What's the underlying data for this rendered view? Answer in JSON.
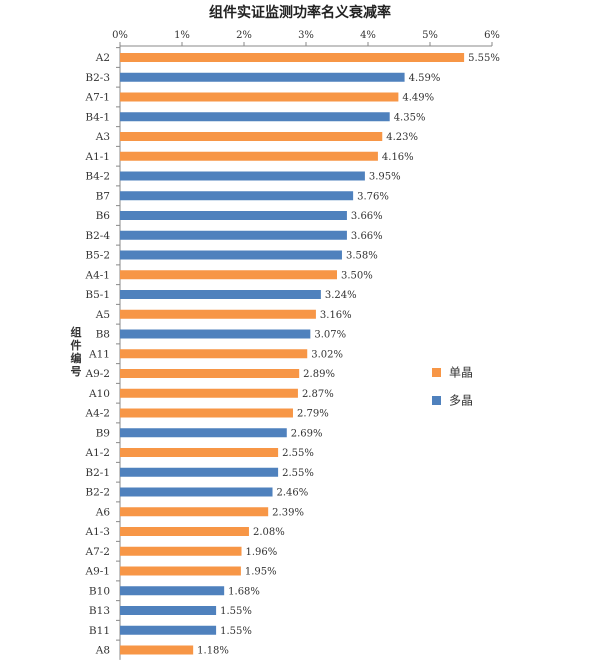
{
  "chart_data": {
    "type": "bar",
    "orientation": "horizontal",
    "title": "组件实证监测功率名义衰减率",
    "ylabel": "组件编号",
    "xlabel": "",
    "xlim": [
      0,
      6
    ],
    "x_ticks": [
      "0%",
      "1%",
      "2%",
      "3%",
      "4%",
      "5%",
      "6%"
    ],
    "x_axis_position": "top",
    "grid": false,
    "legend_position": "right",
    "series": [
      {
        "name": "单晶",
        "color": "#F79646"
      },
      {
        "name": "多晶",
        "color": "#4F81BD"
      }
    ],
    "bars": [
      {
        "category": "A2",
        "value": 5.55,
        "label": "5.55%",
        "series": 0
      },
      {
        "category": "B2-3",
        "value": 4.59,
        "label": "4.59%",
        "series": 1
      },
      {
        "category": "A7-1",
        "value": 4.49,
        "label": "4.49%",
        "series": 0
      },
      {
        "category": "B4-1",
        "value": 4.35,
        "label": "4.35%",
        "series": 1
      },
      {
        "category": "A3",
        "value": 4.23,
        "label": "4.23%",
        "series": 0
      },
      {
        "category": "A1-1",
        "value": 4.16,
        "label": "4.16%",
        "series": 0
      },
      {
        "category": "B4-2",
        "value": 3.95,
        "label": "3.95%",
        "series": 1
      },
      {
        "category": "B7",
        "value": 3.76,
        "label": "3.76%",
        "series": 1
      },
      {
        "category": "B6",
        "value": 3.66,
        "label": "3.66%",
        "series": 1
      },
      {
        "category": "B2-4",
        "value": 3.66,
        "label": "3.66%",
        "series": 1
      },
      {
        "category": "B5-2",
        "value": 3.58,
        "label": "3.58%",
        "series": 1
      },
      {
        "category": "A4-1",
        "value": 3.5,
        "label": "3.50%",
        "series": 0
      },
      {
        "category": "B5-1",
        "value": 3.24,
        "label": "3.24%",
        "series": 1
      },
      {
        "category": "A5",
        "value": 3.16,
        "label": "3.16%",
        "series": 0
      },
      {
        "category": "B8",
        "value": 3.07,
        "label": "3.07%",
        "series": 1
      },
      {
        "category": "A11",
        "value": 3.02,
        "label": "3.02%",
        "series": 0
      },
      {
        "category": "A9-2",
        "value": 2.89,
        "label": "2.89%",
        "series": 0
      },
      {
        "category": "A10",
        "value": 2.87,
        "label": "2.87%",
        "series": 0
      },
      {
        "category": "A4-2",
        "value": 2.79,
        "label": "2.79%",
        "series": 0
      },
      {
        "category": "B9",
        "value": 2.69,
        "label": "2.69%",
        "series": 1
      },
      {
        "category": "A1-2",
        "value": 2.55,
        "label": "2.55%",
        "series": 0
      },
      {
        "category": "B2-1",
        "value": 2.55,
        "label": "2.55%",
        "series": 1
      },
      {
        "category": "B2-2",
        "value": 2.46,
        "label": "2.46%",
        "series": 1
      },
      {
        "category": "A6",
        "value": 2.39,
        "label": "2.39%",
        "series": 0
      },
      {
        "category": "A1-3",
        "value": 2.08,
        "label": "2.08%",
        "series": 0
      },
      {
        "category": "A7-2",
        "value": 1.96,
        "label": "1.96%",
        "series": 0
      },
      {
        "category": "A9-1",
        "value": 1.95,
        "label": "1.95%",
        "series": 0
      },
      {
        "category": "B10",
        "value": 1.68,
        "label": "1.68%",
        "series": 1
      },
      {
        "category": "B13",
        "value": 1.55,
        "label": "1.55%",
        "series": 1
      },
      {
        "category": "B11",
        "value": 1.55,
        "label": "1.55%",
        "series": 1
      },
      {
        "category": "A8",
        "value": 1.18,
        "label": "1.18%",
        "series": 0
      }
    ]
  }
}
